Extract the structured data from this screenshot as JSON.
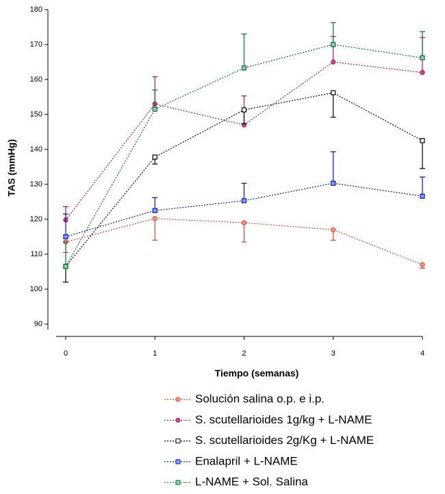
{
  "chart_data": {
    "type": "line",
    "x_label": "Tiempo (semanas)",
    "y_label": "TAS (mmHg)",
    "x": [
      0,
      1,
      2,
      3,
      4
    ],
    "xlim": [
      0,
      4
    ],
    "xticks": [
      0,
      1,
      2,
      3,
      4
    ],
    "ylim": [
      90,
      180
    ],
    "yticks": [
      90,
      100,
      110,
      120,
      130,
      140,
      150,
      160,
      170,
      180
    ],
    "series": [
      {
        "name": "Solución salina o.p. e i.p.",
        "color": "#e8402a",
        "marker": "circle",
        "marker_fill": "#f7a08f",
        "error_direction": "down",
        "values": [
          113.5,
          120.2,
          119.0,
          117.0,
          107.0
        ],
        "errors": [
          3,
          6.2,
          5.5,
          3.0,
          1.0
        ]
      },
      {
        "name": "S. scutellarioides 1g/kg  + L-NAME",
        "color": "#b0105a",
        "marker": "circle",
        "marker_fill": "#c94f8a",
        "error_direction": "up",
        "values": [
          119.8,
          153.0,
          147.0,
          165.0,
          162.0
        ],
        "errors": [
          3.8,
          7.8,
          8.3,
          7.3,
          10
        ]
      },
      {
        "name": "S. scutellarioides 2g/Kg + L-NAME",
        "color": "#000000",
        "marker": "square",
        "marker_fill": "#ffffff",
        "error_direction": "down",
        "values": [
          106.5,
          137.8,
          151.3,
          156.2,
          142.5
        ],
        "errors": [
          4.5,
          2,
          4,
          7,
          8
        ]
      },
      {
        "name": "Enalapril + L-NAME",
        "color": "#0010e0",
        "marker": "square",
        "marker_fill": "#8fa0ff",
        "error_direction": "up",
        "values": [
          115.0,
          122.5,
          125.3,
          130.3,
          126.6
        ],
        "errors": [
          6.5,
          3.7,
          5,
          9,
          5.5
        ]
      },
      {
        "name": "L-NAME + Sol. Salina",
        "color": "#00703a",
        "marker": "square",
        "marker_fill": "#8fd0a8",
        "error_direction": "up",
        "values": [
          106.5,
          151.5,
          163.3,
          170.0,
          166.2
        ],
        "errors": [
          7,
          5.5,
          9.7,
          6.3,
          7.5
        ]
      }
    ]
  }
}
